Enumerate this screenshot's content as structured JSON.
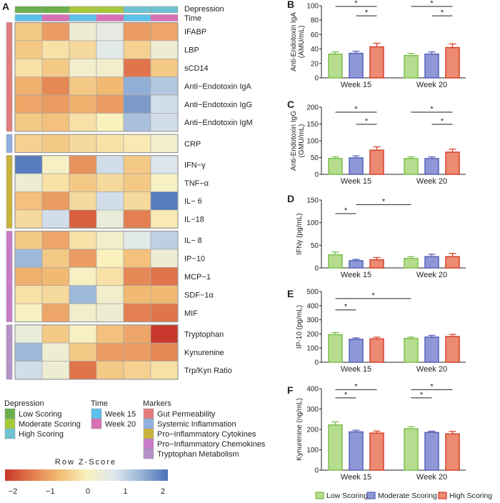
{
  "panel_letters": [
    "A",
    "B",
    "C",
    "D",
    "E",
    "F"
  ],
  "heatmap": {
    "annotation_labels": {
      "depression": "Depression",
      "time": "Time"
    },
    "columns": [
      {
        "depression": "Low Scoring",
        "time": "Week 15"
      },
      {
        "depression": "Low Scoring",
        "time": "Week 20"
      },
      {
        "depression": "Moderate Scoring",
        "time": "Week 15"
      },
      {
        "depression": "Moderate Scoring",
        "time": "Week 20"
      },
      {
        "depression": "High Scoring",
        "time": "Week 15"
      },
      {
        "depression": "High Scoring",
        "time": "Week 20"
      }
    ],
    "groups": [
      {
        "marker": "Gut Permeability",
        "rows": [
          {
            "label": "IFABP",
            "z": [
              -0.5,
              -1.0,
              0.3,
              0.5,
              -1.0,
              -0.9
            ]
          },
          {
            "label": "LBP",
            "z": [
              -0.5,
              -0.2,
              -0.3,
              0.6,
              -0.4,
              0.3
            ]
          },
          {
            "label": "sCD14",
            "z": [
              -0.2,
              -0.5,
              0.2,
              0.2,
              -1.4,
              -0.5
            ]
          },
          {
            "label": "Anti−Endotoxin IgA",
            "z": [
              -0.8,
              -1.2,
              -0.5,
              -0.7,
              1.4,
              1.1
            ]
          },
          {
            "label": "Anti−Endotoxin IgG",
            "z": [
              -0.9,
              -1.0,
              -0.8,
              -1.0,
              1.6,
              0.8
            ]
          },
          {
            "label": "Anti−Endotoxin IgM",
            "z": [
              -0.5,
              -0.6,
              -0.2,
              0.0,
              1.2,
              0.8
            ]
          }
        ]
      },
      {
        "marker": "Systemic Inflammation",
        "rows": [
          {
            "label": "CRP",
            "z": [
              -0.4,
              -0.5,
              -0.3,
              -0.2,
              -0.1,
              0.2
            ]
          }
        ]
      },
      {
        "marker": "Pro−Inflammatory Cytokines",
        "rows": [
          {
            "label": "IFN−γ",
            "z": [
              1.9,
              0.1,
              -1.1,
              0.8,
              -0.5,
              0.7
            ]
          },
          {
            "label": "TNF−α",
            "z": [
              0.3,
              -0.2,
              -0.5,
              -0.3,
              -0.5,
              0.1
            ]
          },
          {
            "label": "IL− 6",
            "z": [
              -0.6,
              -1.0,
              -0.3,
              0.8,
              -0.3,
              1.9
            ]
          },
          {
            "label": "IL−18",
            "z": [
              -0.3,
              0.8,
              -1.6,
              0.4,
              -1.3,
              -0.1
            ]
          }
        ]
      },
      {
        "marker": "Pro−Inflammatory Chemokines",
        "rows": [
          {
            "label": "IL− 8",
            "z": [
              -0.5,
              -0.9,
              -0.2,
              0.2,
              0.6,
              1.0
            ]
          },
          {
            "label": "IP−10",
            "z": [
              1.3,
              -0.5,
              -1.0,
              0.0,
              -0.6,
              0.3
            ]
          },
          {
            "label": "MCP−1",
            "z": [
              -0.8,
              -0.7,
              0.1,
              -0.2,
              -1.2,
              -1.4
            ]
          },
          {
            "label": "SDF−1α",
            "z": [
              -0.2,
              -0.3,
              1.3,
              0.2,
              -0.7,
              -0.7
            ]
          },
          {
            "label": "MIF",
            "z": [
              0.1,
              -0.9,
              0.2,
              0.3,
              -1.3,
              -1.4
            ]
          }
        ]
      },
      {
        "marker": "Tryptophan Metabolism",
        "rows": [
          {
            "label": "Tryptophan",
            "z": [
              0.4,
              -0.5,
              0.1,
              -0.6,
              -0.9,
              -2.0
            ]
          },
          {
            "label": "Kynurenine",
            "z": [
              1.3,
              0.3,
              -0.5,
              -1.0,
              -1.0,
              -1.2
            ]
          },
          {
            "label": "Trp/Kyn Ratio",
            "z": [
              0.8,
              0.3,
              -1.4,
              -0.5,
              -0.4,
              -0.2
            ]
          }
        ]
      }
    ],
    "colorscale": {
      "title": "Row Z-Score",
      "ticks": [
        "−2",
        "−1",
        "0",
        "1",
        "2"
      ],
      "range": [
        -2,
        2
      ],
      "colors": [
        "#c8372b",
        "#e37c4f",
        "#f2bc74",
        "#faf1bd",
        "#dfe8ee",
        "#9ab6d8",
        "#4c70b8"
      ]
    },
    "legend": {
      "depression": {
        "title": "Depression",
        "items": [
          {
            "label": "Low Scoring",
            "color": "#6ab04c"
          },
          {
            "label": "Moderate Scoring",
            "color": "#a6c93a"
          },
          {
            "label": "High Scoring",
            "color": "#6fc3d1"
          }
        ]
      },
      "time": {
        "title": "Time",
        "items": [
          {
            "label": "Week 15",
            "color": "#5bc0ea"
          },
          {
            "label": "Week 20",
            "color": "#d66fb4"
          }
        ]
      },
      "markers": {
        "title": "Markers",
        "items": [
          {
            "label": "Gut Permeability",
            "color": "#e57c7c"
          },
          {
            "label": "Systemic Inflammation",
            "color": "#8fb0e0"
          },
          {
            "label": "Pro−Inflammatory Cytokines",
            "color": "#c8b43a"
          },
          {
            "label": "Pro−Inflammatory Chemokines",
            "color": "#c77cc8"
          },
          {
            "label": "Tryptophan Metabolism",
            "color": "#b792c9"
          }
        ]
      }
    }
  },
  "chart_data": [
    {
      "panel": "B",
      "type": "bar",
      "ylabel": "Anti-Endotoxin IgA\n(AMU/mL)",
      "ylim": [
        0,
        100
      ],
      "yticks": [
        0,
        20,
        40,
        60,
        80,
        100
      ],
      "categories": [
        "Week 15",
        "Week 20"
      ],
      "series": [
        {
          "name": "Low Scoring",
          "values": [
            33,
            31
          ],
          "sem": [
            3,
            3
          ]
        },
        {
          "name": "Moderate Scoring",
          "values": [
            34,
            33
          ],
          "sem": [
            3,
            3
          ]
        },
        {
          "name": "High Scoring",
          "values": [
            43,
            42
          ],
          "sem": [
            5,
            5
          ]
        }
      ],
      "significance": [
        {
          "from": [
            0,
            0
          ],
          "to": [
            0,
            2
          ],
          "y": 99,
          "label": "*"
        },
        {
          "from": [
            0,
            1
          ],
          "to": [
            0,
            2
          ],
          "y": 86,
          "label": "*"
        },
        {
          "from": [
            1,
            0
          ],
          "to": [
            1,
            2
          ],
          "y": 99,
          "label": "*"
        },
        {
          "from": [
            1,
            1
          ],
          "to": [
            1,
            2
          ],
          "y": 86,
          "label": "*"
        }
      ]
    },
    {
      "panel": "C",
      "type": "bar",
      "ylabel": "Anti-Endotoxin IgG\n(GMU/mL)",
      "ylim": [
        0,
        200
      ],
      "yticks": [
        0,
        50,
        100,
        150,
        200
      ],
      "categories": [
        "Week 15",
        "Week 20"
      ],
      "series": [
        {
          "name": "Low Scoring",
          "values": [
            47,
            47
          ],
          "sem": [
            5,
            5
          ]
        },
        {
          "name": "Moderate Scoring",
          "values": [
            49,
            47
          ],
          "sem": [
            6,
            5
          ]
        },
        {
          "name": "High Scoring",
          "values": [
            72,
            66
          ],
          "sem": [
            10,
            9
          ]
        }
      ],
      "significance": [
        {
          "from": [
            0,
            0
          ],
          "to": [
            0,
            2
          ],
          "y": 185,
          "label": "*"
        },
        {
          "from": [
            0,
            1
          ],
          "to": [
            0,
            2
          ],
          "y": 149,
          "label": "*"
        },
        {
          "from": [
            1,
            0
          ],
          "to": [
            1,
            2
          ],
          "y": 185,
          "label": "*"
        },
        {
          "from": [
            1,
            1
          ],
          "to": [
            1,
            2
          ],
          "y": 149,
          "label": "*"
        }
      ]
    },
    {
      "panel": "D",
      "type": "bar",
      "ylabel": "IFNγ (pg/mL)",
      "ylim": [
        0,
        150
      ],
      "yticks": [
        0,
        50,
        100,
        150
      ],
      "categories": [
        "Week 15",
        "Week 20"
      ],
      "series": [
        {
          "name": "Low Scoring",
          "values": [
            29,
            21
          ],
          "sem": [
            6,
            4
          ]
        },
        {
          "name": "Moderate Scoring",
          "values": [
            16,
            25
          ],
          "sem": [
            3,
            5
          ]
        },
        {
          "name": "High Scoring",
          "values": [
            18,
            25
          ],
          "sem": [
            5,
            7
          ]
        }
      ],
      "significance": [
        {
          "from": [
            0,
            0
          ],
          "to": [
            0,
            1
          ],
          "y": 120,
          "label": "*"
        },
        {
          "from": [
            0,
            1
          ],
          "to": [
            1,
            0
          ],
          "y": 140,
          "label": "*"
        }
      ]
    },
    {
      "panel": "E",
      "type": "bar",
      "ylabel": "IP-10 (pg/mL)",
      "ylim": [
        0,
        500
      ],
      "yticks": [
        0,
        100,
        200,
        300,
        400,
        500
      ],
      "categories": [
        "Week 15",
        "Week 20"
      ],
      "series": [
        {
          "name": "Low Scoring",
          "values": [
            195,
            168
          ],
          "sem": [
            15,
            10
          ]
        },
        {
          "name": "Moderate Scoring",
          "values": [
            162,
            178
          ],
          "sem": [
            10,
            12
          ]
        },
        {
          "name": "High Scoring",
          "values": [
            165,
            182
          ],
          "sem": [
            12,
            15
          ]
        }
      ],
      "significance": [
        {
          "from": [
            0,
            0
          ],
          "to": [
            0,
            1
          ],
          "y": 370,
          "label": "*"
        },
        {
          "from": [
            0,
            0
          ],
          "to": [
            1,
            0
          ],
          "y": 450,
          "label": "*"
        }
      ]
    },
    {
      "panel": "F",
      "type": "bar",
      "ylabel": "Kynurenine (ng/mL)",
      "ylim": [
        0,
        400
      ],
      "yticks": [
        0,
        100,
        200,
        300,
        400
      ],
      "categories": [
        "Week 15",
        "Week 20"
      ],
      "series": [
        {
          "name": "Low Scoring",
          "values": [
            222,
            203
          ],
          "sem": [
            15,
            10
          ]
        },
        {
          "name": "Moderate Scoring",
          "values": [
            188,
            185
          ],
          "sem": [
            8,
            6
          ]
        },
        {
          "name": "High Scoring",
          "values": [
            182,
            178
          ],
          "sem": [
            10,
            12
          ]
        }
      ],
      "significance": [
        {
          "from": [
            0,
            0
          ],
          "to": [
            0,
            1
          ],
          "y": 355,
          "label": "*"
        },
        {
          "from": [
            0,
            0
          ],
          "to": [
            0,
            2
          ],
          "y": 395,
          "label": "*"
        },
        {
          "from": [
            1,
            0
          ],
          "to": [
            1,
            1
          ],
          "y": 355,
          "label": "*"
        },
        {
          "from": [
            1,
            0
          ],
          "to": [
            1,
            2
          ],
          "y": 395,
          "label": "*"
        }
      ]
    }
  ],
  "bar_legend": [
    {
      "label": "Low Scoring",
      "fill": "#b5dc8f",
      "stroke": "#7cc04a"
    },
    {
      "label": "Moderate Scoring",
      "fill": "#8f98d6",
      "stroke": "#5561b8"
    },
    {
      "label": "High Scoring",
      "fill": "#ec8a72",
      "stroke": "#d9402b"
    }
  ]
}
